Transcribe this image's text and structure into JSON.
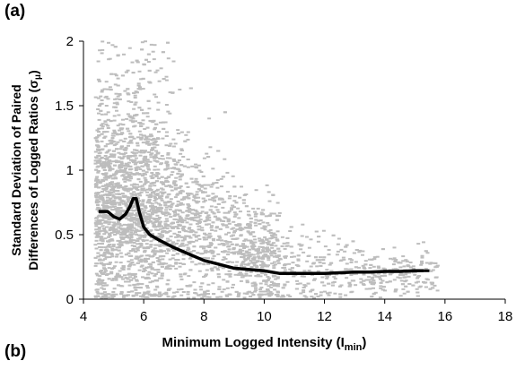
{
  "panels": {
    "a": "(a)",
    "b": "(b)"
  },
  "colors": {
    "scatter": "#bdbdbd",
    "trend": "#000000",
    "axis": "#000000",
    "text": "#000000"
  },
  "chart_data": {
    "type": "scatter",
    "title": "",
    "xlabel": "Minimum Logged Intensity (I",
    "xlabel_sub": "min",
    "xlabel_end": ")",
    "ylabel_line1": "Standard Deviation of Paired",
    "ylabel_line2": "Differences of Logged Ratios (σ",
    "ylabel_sub": "μ",
    "ylabel_end": ")",
    "xlim": [
      4,
      18
    ],
    "ylim": [
      0,
      2
    ],
    "xticks": [
      "4",
      "6",
      "8",
      "10",
      "12",
      "14",
      "16",
      "18"
    ],
    "yticks": [
      "0",
      "0.5",
      "1",
      "1.5",
      "2"
    ],
    "grid": false,
    "legend": "none",
    "scatter_series": {
      "name": "",
      "x_range": [
        4.4,
        15.8
      ],
      "description_points": "approximately 4000 points, dense near x=4.5–7 with spread up to 2, tapering to near 0–0.6 by x=14–16"
    },
    "trend_series": {
      "name": "",
      "style": "solid thick black, dashed at right end",
      "x": [
        4.5,
        4.8,
        5.0,
        5.2,
        5.4,
        5.55,
        5.65,
        5.75,
        5.85,
        6.0,
        6.2,
        6.5,
        7.0,
        7.5,
        8.0,
        8.5,
        9.0,
        9.5,
        10.0,
        10.5,
        11.0,
        11.5,
        12.0,
        12.5,
        13.0,
        13.5,
        14.0,
        14.5,
        15.0,
        15.3,
        15.6
      ],
      "y": [
        0.68,
        0.68,
        0.64,
        0.62,
        0.66,
        0.72,
        0.78,
        0.78,
        0.68,
        0.56,
        0.5,
        0.46,
        0.4,
        0.35,
        0.3,
        0.27,
        0.24,
        0.23,
        0.22,
        0.2,
        0.2,
        0.2,
        0.2,
        0.205,
        0.21,
        0.21,
        0.215,
        0.215,
        0.22,
        0.22,
        0.22
      ],
      "dashed_from_x": 15.3
    }
  }
}
